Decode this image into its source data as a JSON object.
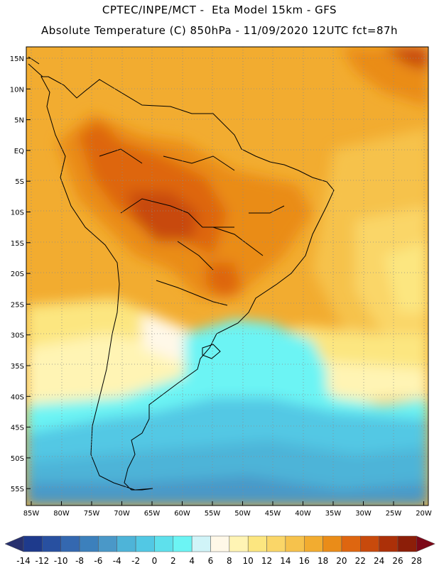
{
  "header": {
    "line1": "CPTEC/INPE/MCT -  Eta Model 15km - GFS",
    "line2": "Absolute Temperature (C) 850hPa - 11/09/2020 12UTC fct=87h"
  },
  "axes": {
    "lat_labels": [
      "15N",
      "10N",
      "5N",
      "EQ",
      "5S",
      "10S",
      "15S",
      "20S",
      "25S",
      "30S",
      "35S",
      "40S",
      "45S",
      "50S",
      "55S"
    ],
    "lon_labels": [
      "85W",
      "80W",
      "75W",
      "70W",
      "65W",
      "60W",
      "55W",
      "50W",
      "45W",
      "40W",
      "35W",
      "30W",
      "25W",
      "20W"
    ]
  },
  "colorbar": {
    "labels": [
      "-14",
      "-12",
      "-10",
      "-8",
      "-6",
      "-4",
      "-2",
      "0",
      "2",
      "4",
      "6",
      "8",
      "10",
      "12",
      "14",
      "16",
      "18",
      "20",
      "22",
      "24",
      "26",
      "28"
    ],
    "colors": [
      "#1e3a8c",
      "#2850a0",
      "#3468b0",
      "#3c80bc",
      "#4a98c8",
      "#4eb4d8",
      "#52c8e4",
      "#5ee0ec",
      "#6cf4f4",
      "#d0f4f8",
      "#fff8e8",
      "#fff4b4",
      "#fce680",
      "#fad668",
      "#f6c24c",
      "#f2ac30",
      "#ea8c18",
      "#de6610",
      "#c84a0c",
      "#ac3008",
      "#8c1e08"
    ],
    "under_color": "#27306e",
    "over_color": "#7c0818"
  }
}
